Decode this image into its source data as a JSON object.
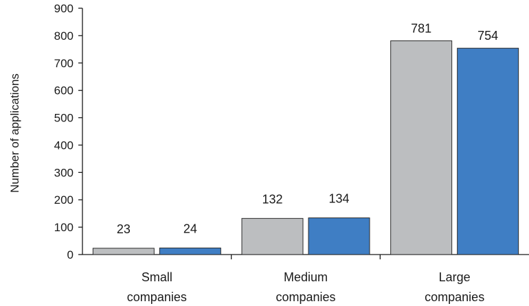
{
  "chart_data": {
    "type": "bar",
    "title": "",
    "xlabel": "",
    "ylabel": "Number of applications",
    "ylim": [
      0,
      900
    ],
    "yticks": [
      0,
      100,
      200,
      300,
      400,
      500,
      600,
      700,
      800,
      900
    ],
    "grid": false,
    "legend": "none",
    "categories": [
      [
        "Small",
        "companies"
      ],
      [
        "Medium",
        "companies"
      ],
      [
        "Large",
        "companies"
      ]
    ],
    "series": [
      {
        "color": "#bcbec0",
        "values": [
          23,
          132,
          781
        ]
      },
      {
        "color": "#3f7ec4",
        "values": [
          24,
          134,
          754
        ]
      }
    ]
  }
}
